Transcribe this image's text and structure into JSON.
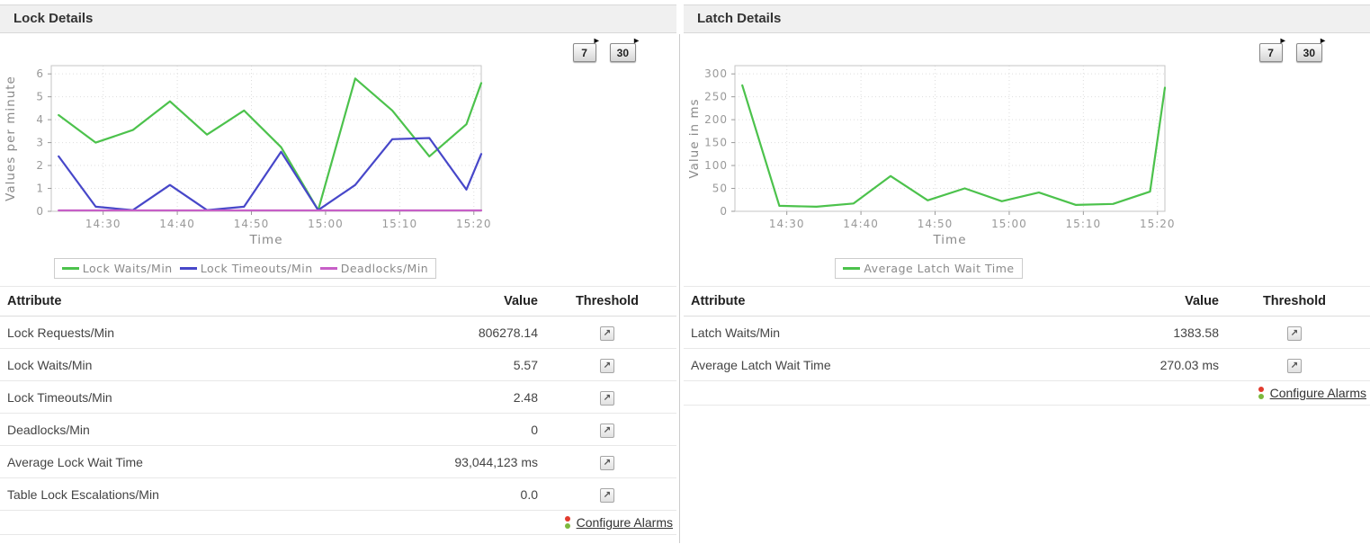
{
  "icons": {
    "threshold": "↗",
    "range_button_arrow": "▸"
  },
  "colors": {
    "header_bg": "#f0f0f0",
    "alarm_red": "#e23b2e",
    "alarm_green": "#7cb83d",
    "grid": "#dddddd",
    "tick_text": "#999999",
    "axis_title": "#8a8a8a"
  },
  "panels": [
    {
      "id": "lock-details",
      "title": "Lock Details",
      "range_buttons": [
        {
          "label": "7"
        },
        {
          "label": "30"
        }
      ],
      "chart_data": {
        "type": "line",
        "title": "",
        "xlabel": "Time",
        "ylabel": "Values per minute",
        "x_range": [
          0,
          58
        ],
        "x_minutes": [
          1,
          6,
          11,
          16,
          21,
          26,
          31,
          36,
          41,
          46,
          51,
          56,
          58
        ],
        "x_ticks": [
          {
            "at": 7,
            "label": "14:30"
          },
          {
            "at": 17,
            "label": "14:40"
          },
          {
            "at": 27,
            "label": "14:50"
          },
          {
            "at": 37,
            "label": "15:00"
          },
          {
            "at": 47,
            "label": "15:10"
          },
          {
            "at": 57,
            "label": "15:20"
          }
        ],
        "ylim": [
          0,
          6
        ],
        "y_ticks": [
          0,
          1,
          2,
          3,
          4,
          5,
          6
        ],
        "grid": true,
        "legend_position": "bottom",
        "series": [
          {
            "name": "Lock Waits/Min",
            "color": "#4cc24c",
            "values": [
              4.2,
              3.0,
              3.55,
              4.8,
              3.35,
              4.4,
              2.8,
              0.05,
              5.8,
              4.4,
              2.4,
              3.8,
              5.6
            ]
          },
          {
            "name": "Lock Timeouts/Min",
            "color": "#4747c9",
            "values": [
              2.4,
              0.2,
              0.05,
              1.15,
              0.05,
              0.2,
              2.6,
              0.05,
              1.15,
              3.15,
              3.2,
              0.95,
              2.5
            ]
          },
          {
            "name": "Deadlocks/Min",
            "color": "#c75fc7",
            "values": [
              0.02,
              0.02,
              0.02,
              0.02,
              0.02,
              0.02,
              0.02,
              0.02,
              0.02,
              0.02,
              0.02,
              0.02,
              0.02
            ]
          }
        ]
      },
      "table": {
        "headers": [
          "Attribute",
          "Value",
          "Threshold"
        ],
        "rows": [
          {
            "attribute": "Lock Requests/Min",
            "value": "806278.14"
          },
          {
            "attribute": "Lock Waits/Min",
            "value": "5.57"
          },
          {
            "attribute": "Lock Timeouts/Min",
            "value": "2.48"
          },
          {
            "attribute": "Deadlocks/Min",
            "value": "0"
          },
          {
            "attribute": "Average Lock Wait Time",
            "value": "93,044,123 ms"
          },
          {
            "attribute": "Table Lock Escalations/Min",
            "value": "0.0"
          }
        ],
        "footer_link": "Configure Alarms"
      }
    },
    {
      "id": "latch-details",
      "title": "Latch Details",
      "range_buttons": [
        {
          "label": "7"
        },
        {
          "label": "30"
        }
      ],
      "chart_data": {
        "type": "line",
        "title": "",
        "xlabel": "Time",
        "ylabel": "Value in ms",
        "x_range": [
          0,
          58
        ],
        "x_minutes": [
          1,
          6,
          11,
          16,
          21,
          26,
          31,
          36,
          41,
          46,
          51,
          56,
          58
        ],
        "x_ticks": [
          {
            "at": 7,
            "label": "14:30"
          },
          {
            "at": 17,
            "label": "14:40"
          },
          {
            "at": 27,
            "label": "14:50"
          },
          {
            "at": 37,
            "label": "15:00"
          },
          {
            "at": 47,
            "label": "15:10"
          },
          {
            "at": 57,
            "label": "15:20"
          }
        ],
        "ylim": [
          0,
          300
        ],
        "y_ticks": [
          0,
          50,
          100,
          150,
          200,
          250,
          300
        ],
        "grid": true,
        "legend_position": "bottom",
        "series": [
          {
            "name": "Average Latch Wait Time",
            "color": "#4cc24c",
            "values": [
              275,
              12,
              10,
              17,
              77,
              24,
              50,
              22,
              41,
              14,
              16,
              43,
              270
            ]
          }
        ]
      },
      "table": {
        "headers": [
          "Attribute",
          "Value",
          "Threshold"
        ],
        "rows": [
          {
            "attribute": "Latch Waits/Min",
            "value": "1383.58"
          },
          {
            "attribute": "Average Latch Wait Time",
            "value": "270.03 ms"
          }
        ],
        "footer_link": "Configure Alarms"
      }
    }
  ]
}
